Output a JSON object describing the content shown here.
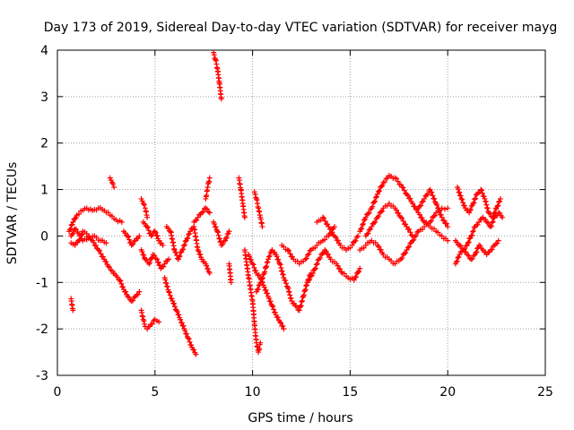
{
  "colors": {
    "series": "#ff0000",
    "grid": "#a0a0a0",
    "axis": "#000000",
    "background": "#ffffff"
  },
  "chart_data": {
    "type": "scatter",
    "marker": "plus",
    "title": "Day 173 of 2019, Sidereal Day-to-day VTEC variation (SDTVAR) for receiver mayg",
    "xlabel": "GPS time / hours",
    "ylabel": "SDTVAR / TECUs",
    "xlim": [
      0,
      25
    ],
    "ylim": [
      -3,
      4
    ],
    "xticks": [
      "0",
      "5",
      "10",
      "15",
      "20",
      "25"
    ],
    "yticks": [
      "-3",
      "-2",
      "-1",
      "0",
      "1",
      "2",
      "3",
      "4"
    ],
    "grid": true,
    "series": [
      {
        "name": "SDTVAR",
        "segments": [
          {
            "x": [
              0.7,
              0.8
            ],
            "y": [
              -1.35,
              -1.6
            ]
          },
          {
            "x": [
              0.6,
              0.8,
              1.0,
              1.3,
              1.5,
              1.8,
              2.1,
              2.4,
              2.7,
              3.0,
              3.3
            ],
            "y": [
              0.1,
              0.3,
              0.45,
              0.55,
              0.6,
              0.55,
              0.6,
              0.55,
              0.45,
              0.35,
              0.3
            ]
          },
          {
            "x": [
              0.7,
              0.9,
              1.1,
              1.3,
              1.5,
              1.8,
              2.1,
              2.4,
              2.6,
              2.8,
              3.0,
              3.2,
              3.4,
              3.6,
              3.8,
              4.0,
              4.2
            ],
            "y": [
              -0.15,
              -0.2,
              -0.1,
              0.1,
              0.05,
              -0.1,
              -0.3,
              -0.5,
              -0.65,
              -0.75,
              -0.85,
              -0.95,
              -1.15,
              -1.3,
              -1.4,
              -1.3,
              -1.2
            ]
          },
          {
            "x": [
              0.7,
              0.9,
              1.1,
              1.3,
              1.6,
              1.9,
              2.2,
              2.5
            ],
            "y": [
              0.0,
              0.15,
              0.05,
              -0.1,
              -0.05,
              0.0,
              -0.1,
              -0.15
            ]
          },
          {
            "x": [
              2.7,
              2.8,
              2.9
            ],
            "y": [
              1.25,
              1.15,
              1.05
            ]
          },
          {
            "x": [
              3.4,
              3.6,
              3.8,
              4.0,
              4.2
            ],
            "y": [
              0.1,
              0.0,
              -0.2,
              -0.1,
              0.0
            ]
          },
          {
            "x": [
              4.3,
              4.4,
              4.5,
              4.6
            ],
            "y": [
              0.8,
              0.7,
              0.6,
              0.4
            ]
          },
          {
            "x": [
              4.3,
              4.4,
              4.5,
              4.6,
              4.8,
              5.0,
              5.2
            ],
            "y": [
              -1.6,
              -1.8,
              -1.95,
              -2.0,
              -1.9,
              -1.8,
              -1.85
            ]
          },
          {
            "x": [
              4.3,
              4.5,
              4.7,
              4.9,
              5.1,
              5.3,
              5.5,
              5.7
            ],
            "y": [
              -0.3,
              -0.5,
              -0.6,
              -0.4,
              -0.5,
              -0.7,
              -0.6,
              -0.5
            ]
          },
          {
            "x": [
              4.4,
              4.6,
              4.8,
              5.0,
              5.2,
              5.4
            ],
            "y": [
              0.3,
              0.2,
              0.0,
              0.1,
              -0.1,
              -0.2
            ]
          },
          {
            "x": [
              5.5,
              5.7,
              5.9,
              6.1,
              6.3,
              6.5,
              6.7,
              6.9,
              7.1
            ],
            "y": [
              -0.9,
              -1.2,
              -1.4,
              -1.6,
              -1.8,
              -2.0,
              -2.2,
              -2.4,
              -2.55
            ]
          },
          {
            "x": [
              5.6,
              5.8,
              6.0,
              6.2,
              6.4,
              6.6,
              6.8,
              7.0,
              7.2,
              7.4,
              7.6,
              7.8
            ],
            "y": [
              0.2,
              0.1,
              -0.3,
              -0.5,
              -0.3,
              -0.1,
              0.1,
              0.2,
              -0.3,
              -0.5,
              -0.6,
              -0.8
            ]
          },
          {
            "x": [
              7.0,
              7.2,
              7.4,
              7.6,
              7.8
            ],
            "y": [
              0.3,
              0.4,
              0.5,
              0.6,
              0.5
            ]
          },
          {
            "x": [
              7.6,
              7.7,
              7.8
            ],
            "y": [
              0.8,
              1.05,
              1.25
            ]
          },
          {
            "x": [
              8.0,
              8.1,
              8.2,
              8.3,
              8.4
            ],
            "y": [
              3.95,
              3.8,
              3.6,
              3.3,
              2.95
            ]
          },
          {
            "x": [
              8.0,
              8.2,
              8.4,
              8.6,
              8.8
            ],
            "y": [
              0.3,
              0.1,
              -0.2,
              -0.1,
              0.1
            ]
          },
          {
            "x": [
              8.8,
              8.9
            ],
            "y": [
              -0.6,
              -1.0
            ]
          },
          {
            "x": [
              9.3,
              9.4,
              9.5,
              9.6
            ],
            "y": [
              1.25,
              1.0,
              0.7,
              0.4
            ]
          },
          {
            "x": [
              9.6,
              9.8,
              10.0,
              10.1,
              10.2,
              10.3,
              10.4
            ],
            "y": [
              -0.3,
              -0.9,
              -1.4,
              -1.9,
              -2.3,
              -2.5,
              -2.3
            ]
          },
          {
            "x": [
              10.1,
              10.2,
              10.3,
              10.4,
              10.5
            ],
            "y": [
              0.95,
              0.8,
              0.6,
              0.4,
              0.2
            ]
          },
          {
            "x": [
              9.8,
              10.0,
              10.2,
              10.4,
              10.6,
              10.8,
              11.0,
              11.2,
              11.4,
              11.6
            ],
            "y": [
              -0.4,
              -0.6,
              -0.8,
              -0.9,
              -1.1,
              -1.3,
              -1.5,
              -1.7,
              -1.85,
              -2.0
            ]
          },
          {
            "x": [
              10.2,
              10.4,
              10.6,
              10.8,
              11.0,
              11.2,
              11.4,
              11.6,
              11.8,
              12.0,
              12.2,
              12.4,
              12.6,
              12.8,
              13.0
            ],
            "y": [
              -1.2,
              -1.0,
              -0.8,
              -0.5,
              -0.3,
              -0.4,
              -0.6,
              -0.9,
              -1.1,
              -1.4,
              -1.5,
              -1.6,
              -1.3,
              -1.0,
              -0.8
            ]
          },
          {
            "x": [
              11.5,
              11.8,
              12.1,
              12.4,
              12.7,
              13.0,
              13.3,
              13.6,
              13.9,
              14.2
            ],
            "y": [
              -0.2,
              -0.3,
              -0.5,
              -0.6,
              -0.5,
              -0.3,
              -0.2,
              -0.1,
              0.0,
              0.2
            ]
          },
          {
            "x": [
              12.8,
              13.1,
              13.4,
              13.7,
              14.0,
              14.3,
              14.6,
              14.9,
              15.2,
              15.5
            ],
            "y": [
              -1.0,
              -0.8,
              -0.5,
              -0.3,
              -0.5,
              -0.6,
              -0.8,
              -0.9,
              -0.95,
              -0.7
            ]
          },
          {
            "x": [
              13.3,
              13.6,
              13.9,
              14.2,
              14.5,
              14.8,
              15.1,
              15.4
            ],
            "y": [
              0.3,
              0.4,
              0.2,
              0.0,
              -0.2,
              -0.3,
              -0.2,
              0.0
            ]
          },
          {
            "x": [
              15.5,
              15.8,
              16.1,
              16.4,
              16.7,
              17.0,
              17.3,
              17.6,
              17.9,
              18.2,
              18.5,
              18.8,
              19.1,
              19.4,
              19.7,
              20.0
            ],
            "y": [
              0.1,
              0.4,
              0.6,
              0.9,
              1.15,
              1.3,
              1.25,
              1.1,
              0.9,
              0.7,
              0.5,
              0.3,
              0.2,
              0.1,
              0.0,
              -0.1
            ]
          },
          {
            "x": [
              15.5,
              15.8,
              16.1,
              16.4,
              16.7,
              17.0,
              17.3,
              17.6,
              17.9,
              18.2,
              18.5,
              18.8,
              19.1,
              19.4,
              19.7,
              20.0
            ],
            "y": [
              -0.3,
              -0.2,
              -0.1,
              -0.2,
              -0.4,
              -0.5,
              -0.6,
              -0.5,
              -0.3,
              -0.1,
              0.1,
              0.2,
              0.3,
              0.5,
              0.6,
              0.6
            ]
          },
          {
            "x": [
              15.8,
              16.1,
              16.4,
              16.7,
              17.0,
              17.3,
              17.6,
              17.9,
              18.2
            ],
            "y": [
              0.0,
              0.2,
              0.4,
              0.6,
              0.7,
              0.6,
              0.4,
              0.2,
              0.0
            ]
          },
          {
            "x": [
              18.5,
              18.8,
              19.1,
              19.4,
              19.7,
              20.0
            ],
            "y": [
              0.6,
              0.8,
              1.0,
              0.7,
              0.4,
              0.2
            ]
          },
          {
            "x": [
              20.5,
              20.7,
              20.9,
              21.1,
              21.3,
              21.5,
              21.7,
              21.9,
              22.1,
              22.3,
              22.5,
              22.7
            ],
            "y": [
              1.05,
              0.8,
              0.6,
              0.5,
              0.7,
              0.9,
              1.0,
              0.8,
              0.5,
              0.4,
              0.6,
              0.8
            ]
          },
          {
            "x": [
              20.4,
              20.6,
              20.8,
              21.0,
              21.2,
              21.4,
              21.6,
              21.8,
              22.0,
              22.2,
              22.4,
              22.6,
              22.8
            ],
            "y": [
              -0.1,
              -0.2,
              -0.3,
              -0.2,
              0.0,
              0.2,
              0.3,
              0.4,
              0.3,
              0.2,
              0.4,
              0.5,
              0.4
            ]
          },
          {
            "x": [
              20.4,
              20.6,
              20.8,
              21.0,
              21.2,
              21.4,
              21.6,
              21.8,
              22.0,
              22.2,
              22.4,
              22.6
            ],
            "y": [
              -0.6,
              -0.4,
              -0.3,
              -0.4,
              -0.5,
              -0.4,
              -0.2,
              -0.3,
              -0.4,
              -0.3,
              -0.2,
              -0.1
            ]
          }
        ]
      }
    ]
  }
}
